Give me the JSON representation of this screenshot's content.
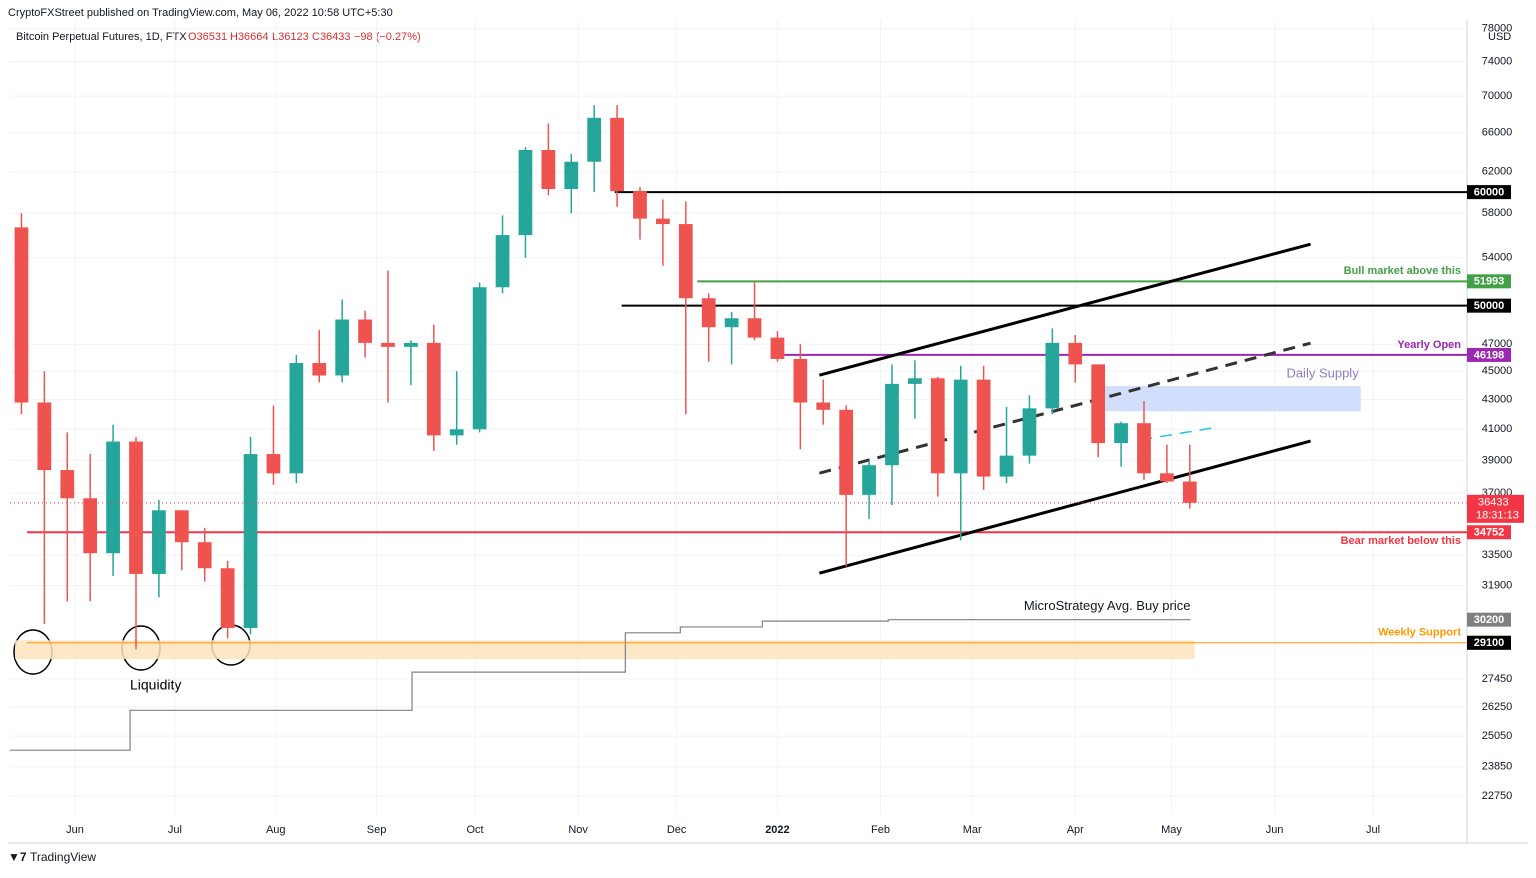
{
  "header": {
    "publisher": "CryptoFXStreet published on TradingView.com, May 06, 2022 10:58 UTC+5:30",
    "symbol": "Bitcoin Perpetual Futures, 1D, FTX",
    "ohlc": [
      "O36531",
      "H36664",
      "L36123",
      "C36433"
    ],
    "change": "−98 (−0.27%)",
    "currency": "USD",
    "footer": "TradingView"
  },
  "chart_data": {
    "type": "candlestick",
    "log_scale": true,
    "grid": true,
    "up_color": "#26a69a",
    "down_color": "#ef5350",
    "candles": {
      "open": [
        56700,
        42800,
        38400,
        36700,
        33600,
        40200,
        32500,
        36000,
        34200,
        32800,
        29800,
        39400,
        38200,
        45600,
        44700,
        48900,
        47100,
        46800,
        47100,
        40600,
        41000,
        51500,
        56000,
        64200,
        60300,
        63000,
        67600,
        60100,
        57500,
        57000,
        50600,
        48300,
        49000,
        47500,
        45900,
        42800,
        42300,
        36900,
        38700,
        44100,
        44500,
        38200,
        44400,
        38000,
        39300,
        42400,
        47100,
        45500,
        40100,
        41400,
        38200,
        37700
      ],
      "high": [
        58000,
        45000,
        40800,
        39400,
        41300,
        40500,
        36600,
        36000,
        35000,
        33200,
        40500,
        42600,
        46200,
        48100,
        50500,
        49600,
        52900,
        47300,
        48500,
        45000,
        51900,
        57800,
        64500,
        67000,
        63800,
        69000,
        69000,
        60500,
        59300,
        59100,
        51000,
        49500,
        52000,
        48000,
        47000,
        44400,
        42600,
        39000,
        45500,
        45800,
        44600,
        45400,
        45400,
        42500,
        43300,
        48200,
        47700,
        45500,
        41500,
        42900,
        40000,
        40000
      ],
      "low": [
        42000,
        30000,
        31100,
        31100,
        32400,
        28800,
        31300,
        32700,
        32100,
        29300,
        29500,
        37500,
        37600,
        44200,
        44200,
        46000,
        42800,
        44000,
        39600,
        40000,
        40800,
        51000,
        54000,
        59700,
        58000,
        60000,
        58600,
        55600,
        53300,
        42000,
        45700,
        45500,
        47300,
        45700,
        39700,
        41300,
        32900,
        35500,
        36300,
        41700,
        36800,
        34300,
        37200,
        37600,
        38800,
        42000,
        44200,
        39200,
        38600,
        37800,
        37600,
        36100
      ],
      "close": [
        42800,
        38400,
        36700,
        33600,
        40200,
        32500,
        36000,
        34200,
        32800,
        29800,
        39400,
        38200,
        45600,
        44700,
        48900,
        47100,
        46800,
        47100,
        40600,
        41000,
        51500,
        56000,
        64200,
        60300,
        63000,
        67600,
        60100,
        57500,
        57000,
        50600,
        48300,
        49000,
        47500,
        45900,
        42800,
        42300,
        36900,
        38700,
        44100,
        44500,
        38200,
        44400,
        38000,
        39300,
        42400,
        47100,
        45500,
        40100,
        41400,
        38200,
        37700,
        36433
      ]
    },
    "ylim": [
      22070,
      79100
    ],
    "yticks": [
      22750,
      23850,
      25050,
      26250,
      27450,
      31900,
      33500,
      37000,
      39000,
      41000,
      43000,
      45000,
      47000,
      54000,
      58000,
      62000,
      66000,
      70000,
      74000,
      78000
    ],
    "xlim": [
      0,
      63.6
    ],
    "xticks": [
      {
        "value": 2.84,
        "label": "Jun"
      },
      {
        "value": 7.2,
        "label": "Jul"
      },
      {
        "value": 11.6,
        "label": "Aug"
      },
      {
        "value": 16.0,
        "label": "Sep"
      },
      {
        "value": 20.3,
        "label": "Oct"
      },
      {
        "value": 24.8,
        "label": "Nov"
      },
      {
        "value": 29.1,
        "label": "Dec"
      },
      {
        "value": 33.5,
        "label": "2022"
      },
      {
        "value": 38.0,
        "label": "Feb"
      },
      {
        "value": 42.0,
        "label": "Mar"
      },
      {
        "value": 46.5,
        "label": "Apr"
      },
      {
        "value": 50.7,
        "label": "May"
      },
      {
        "value": 55.2,
        "label": "Jun"
      },
      {
        "value": 59.5,
        "label": "Jul"
      }
    ],
    "levels": [
      {
        "value": 60000,
        "color": "#000000",
        "start": 26.4
      },
      {
        "value": 51993,
        "color": "#43a047",
        "start": 30.0,
        "label": "Bull market above this"
      },
      {
        "value": 50000,
        "color": "#000000",
        "start": 26.7
      },
      {
        "value": 46198,
        "color": "#9c27b0",
        "start": 33.8,
        "label": "Yearly Open"
      },
      {
        "value": 34752,
        "color": "#f23645",
        "start": 0.74,
        "label": "Bear market below this"
      },
      {
        "value": 29100,
        "color": "#ff9800",
        "start": 0.74,
        "label": "Weekly Support"
      }
    ],
    "badges": [
      {
        "value": 29100,
        "color": "#000000"
      }
    ],
    "last_price": {
      "value": 36433,
      "countdown": "18:31:13",
      "color": "#f23645"
    },
    "zones": [
      {
        "label": "Daily Supply",
        "low": 42200,
        "high": 43950,
        "start": 47.4,
        "end": 58.96,
        "color": "#c9d8fb",
        "text_color": "#8e7cc3"
      },
      {
        "low": 28350,
        "high": 29220,
        "start": 0.22,
        "end": 51.7,
        "color": "#fde3bd"
      }
    ],
    "step_line": {
      "name": "MicroStrategy Avg. Buy price",
      "color": "#808080",
      "x": [
        0,
        5.24,
        5.24,
        17.55,
        17.55,
        26.86,
        26.86,
        29.26,
        29.26,
        32.84,
        32.84,
        38.34,
        38.34,
        51.53
      ],
      "values": [
        24490,
        24490,
        26110,
        26110,
        27760,
        27760,
        29570,
        29570,
        29850,
        29850,
        30130,
        30130,
        30200,
        30200
      ]
    },
    "trendlines": [
      {
        "x": [
          35.33,
          56.77
        ],
        "values": [
          44720,
          55190
        ],
        "color": "#000000",
        "style": "solid"
      },
      {
        "x": [
          35.33,
          56.77
        ],
        "values": [
          32540,
          40230
        ],
        "color": "#000000",
        "style": "solid"
      },
      {
        "x": [
          35.33,
          56.77
        ],
        "values": [
          38210,
          47080
        ],
        "color": "#333333",
        "style": "dashed"
      },
      {
        "x": [
          49.34,
          52.53
        ],
        "values": [
          40300,
          41100
        ],
        "color": "#26c6da",
        "style": "dashed"
      }
    ],
    "annotation": "Liquidity"
  }
}
